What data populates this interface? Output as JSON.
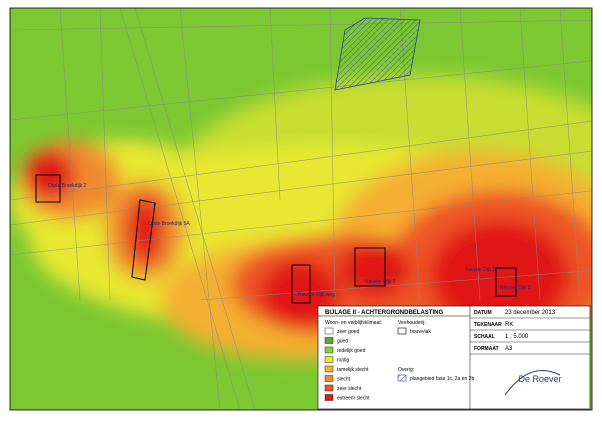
{
  "legend": {
    "title": "BIJLAGE II - ACHTERGRONDBELASTING",
    "climate_heading": "Woon- en verblijfsklimaat:",
    "climate_items": [
      "zeer goed",
      "goed",
      "redelijk goed",
      "matig",
      "tamelijk slecht",
      "slecht",
      "zeer slecht",
      "extreem slecht"
    ],
    "farm_heading": "Veehouderij:",
    "farm_item": "bouwvlak",
    "other_heading": "Overig:",
    "other_item": "plangebied fase 1c, 2a en 2b"
  },
  "info": {
    "rows": [
      [
        "DATUM",
        "23 december 2013"
      ],
      [
        "TEKENAAR",
        "RK"
      ],
      [
        "SCHAAL",
        "1 : 5.000"
      ],
      [
        "FORMAAT",
        "A3"
      ]
    ]
  },
  "logo": "De Roever",
  "map_labels": [
    "Oude Broekdijk 2",
    "Oude Broekdijk 5A",
    "Nieuwe Dijk weg",
    "Nieuwe Dijk 6",
    "Nieuwe Dijk 8",
    "Nieuwe Dijk 9"
  ]
}
